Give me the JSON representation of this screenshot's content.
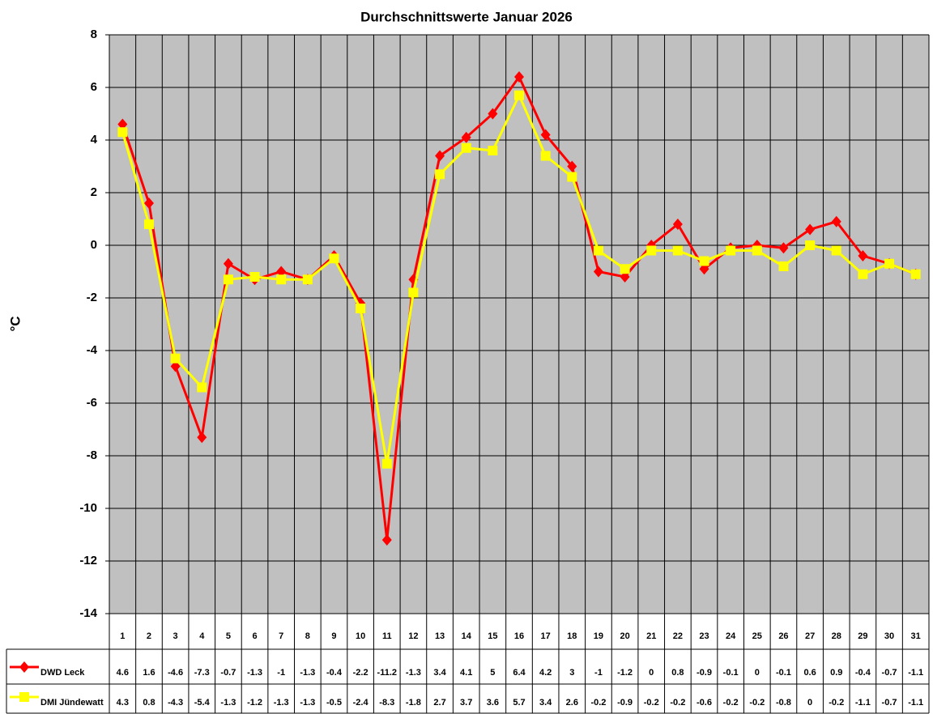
{
  "chart_data": {
    "type": "line",
    "title": "Durchschnittswerte Januar 2026",
    "y_label": "°C",
    "categories": [
      "1",
      "2",
      "3",
      "4",
      "5",
      "6",
      "7",
      "8",
      "9",
      "10",
      "11",
      "12",
      "13",
      "14",
      "15",
      "16",
      "17",
      "18",
      "19",
      "20",
      "21",
      "22",
      "23",
      "24",
      "25",
      "26",
      "27",
      "28",
      "29",
      "30",
      "31"
    ],
    "series": [
      {
        "name": "DWD Leck",
        "color": "#ff0000",
        "marker": "diamond",
        "values": [
          4.6,
          1.6,
          -4.6,
          -7.3,
          -0.7,
          -1.3,
          -1,
          -1.3,
          -0.4,
          -2.2,
          -11.2,
          -1.3,
          3.4,
          4.1,
          5,
          6.4,
          4.2,
          3,
          -1,
          -1.2,
          0,
          0.8,
          -0.9,
          -0.1,
          0,
          -0.1,
          0.6,
          0.9,
          -0.4,
          -0.7,
          -1.1
        ]
      },
      {
        "name": "DMI Jündewatt",
        "color": "#ffff00",
        "marker": "square",
        "values": [
          4.3,
          0.8,
          -4.3,
          -5.4,
          -1.3,
          -1.2,
          -1.3,
          -1.3,
          -0.5,
          -2.4,
          -8.3,
          -1.8,
          2.7,
          3.7,
          3.6,
          5.7,
          3.4,
          2.6,
          -0.2,
          -0.9,
          -0.2,
          -0.2,
          -0.6,
          -0.2,
          -0.2,
          -0.8,
          0,
          -0.2,
          -1.1,
          -0.7,
          -1.1
        ]
      }
    ],
    "ylim": [
      -14,
      8
    ],
    "yticks": [
      8,
      6,
      4,
      2,
      0,
      -2,
      -4,
      -6,
      -8,
      -10,
      -12,
      -14
    ],
    "grid": true,
    "data_table": true
  }
}
